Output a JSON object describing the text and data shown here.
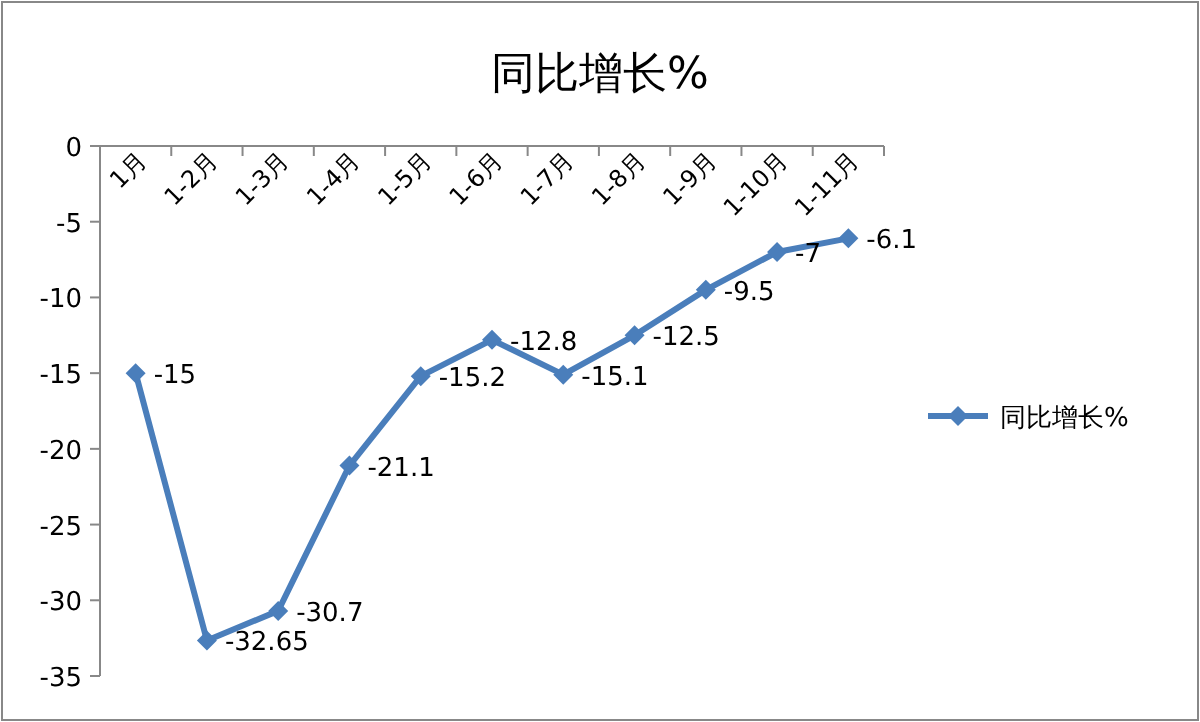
{
  "chart_data": {
    "type": "line",
    "title": "同比增长%",
    "categories": [
      "1月",
      "1-2月",
      "1-3月",
      "1-4月",
      "1-5月",
      "1-6月",
      "1-7月",
      "1-8月",
      "1-9月",
      "1-10月",
      "1-11月"
    ],
    "series": [
      {
        "name": "同比增长%",
        "color": "#4a7ebb",
        "values": [
          -15,
          -32.65,
          -30.7,
          -21.1,
          -15.2,
          -12.8,
          -15.1,
          -12.5,
          -9.5,
          -7,
          -6.1
        ]
      }
    ],
    "ylim": [
      -35,
      0
    ],
    "yticks": [
      0,
      -5,
      -10,
      -15,
      -20,
      -25,
      -30,
      -35
    ],
    "marker": "diamond",
    "data_labels": true,
    "legend": "right",
    "grid": false
  }
}
